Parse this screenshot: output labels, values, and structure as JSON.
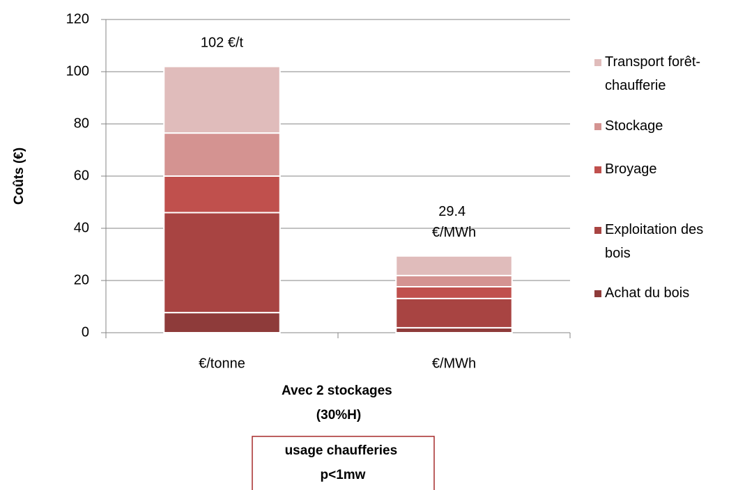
{
  "chart_data": {
    "type": "stacked_bar",
    "y_label": "Coûts (€)",
    "x_label": "Avec 2 stockages (30%H)",
    "annotation": "usage chaufferies p<1mw",
    "categories": [
      "€/tonne",
      "€/MWh"
    ],
    "series": [
      {
        "name": "Achat du bois",
        "color": "#8e3b3a",
        "values": [
          7.7,
          1.9
        ]
      },
      {
        "name": "Exploitation des bois",
        "color": "#a84442",
        "values": [
          38.3,
          11.2
        ]
      },
      {
        "name": "Broyage",
        "color": "#c0504d",
        "values": [
          14,
          4.5
        ]
      },
      {
        "name": "Stockage",
        "color": "#d49391",
        "values": [
          16.5,
          4.3
        ]
      },
      {
        "name": "Transport forêt-chaufferie",
        "color": "#e0bcbb",
        "values": [
          25.5,
          7.5
        ]
      }
    ],
    "totals": {
      "values": [
        102,
        29.4
      ],
      "value_labels": [
        "102 €/t",
        "29.4 €/MWh"
      ]
    },
    "ylim": [
      0,
      120
    ],
    "yticks": [
      0,
      20,
      40,
      60,
      80,
      100,
      120
    ],
    "grid": true,
    "legend": "right"
  }
}
